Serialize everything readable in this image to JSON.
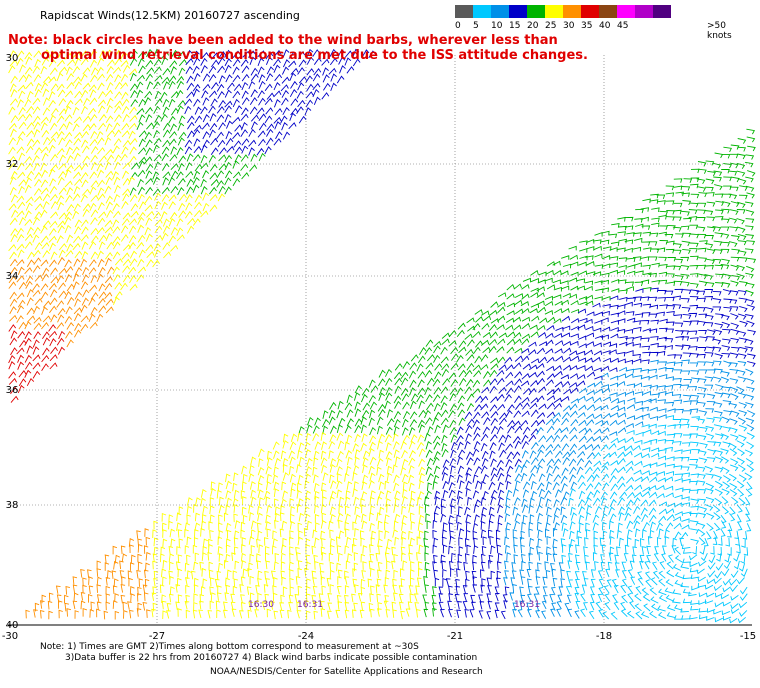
{
  "title": "Rapidscat Winds(12.5KM) 20160727 ascending",
  "note": {
    "line1": "Note: black circles have been added to the wind barbs, wherever less than",
    "line2": "optimal wind retrieval conditions are met due to the ISS attitude changes."
  },
  "legend": {
    "unit": ">50 knots",
    "bins": [
      {
        "label": "0",
        "color": "#5a5a5a"
      },
      {
        "label": "5",
        "color": "#00c8ff"
      },
      {
        "label": "10",
        "color": "#0090e8"
      },
      {
        "label": "15",
        "color": "#0000c8"
      },
      {
        "label": "20",
        "color": "#00b400"
      },
      {
        "label": "25",
        "color": "#ffff00"
      },
      {
        "label": "30",
        "color": "#ff9000"
      },
      {
        "label": "35",
        "color": "#e00000"
      },
      {
        "label": "40",
        "color": "#8b4513"
      },
      {
        "label": "45",
        "color": "#ff00ff"
      },
      {
        "label": "",
        "color": "#b000c8"
      },
      {
        "label": "",
        "color": "#500080"
      }
    ]
  },
  "axes": {
    "lon_ticks": [
      "-30",
      "-27",
      "-24",
      "-21",
      "-18",
      "-15"
    ],
    "lat_ticks": [
      "30",
      "32",
      "34",
      "36",
      "38",
      "40"
    ]
  },
  "time_labels": [
    "16:30",
    "16:31",
    "16:31"
  ],
  "footer": {
    "line1": "Note: 1) Times are GMT 2)Times along bottom correspond to measurement at ~30S",
    "line2": "3)Data buffer is 22 hrs from 20160727 4) Black wind barbs indicate possible contamination",
    "credit": "NOAA/NESDIS/Center for Satellite Applications and Research"
  }
}
